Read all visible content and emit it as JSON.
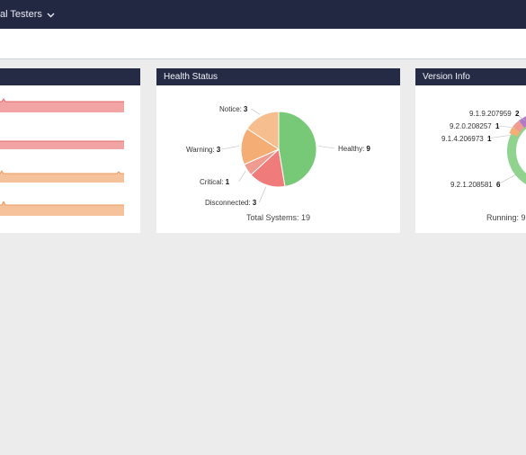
{
  "topbar": {
    "title": "al Testers"
  },
  "health": {
    "title": "Health Status",
    "total_label": "Total Systems: 19",
    "slices": [
      {
        "name": "Healthy",
        "value": 9,
        "color": "#77c977"
      },
      {
        "name": "Disconnected",
        "value": 3,
        "color": "#ef7b7b"
      },
      {
        "name": "Critical",
        "value": 1,
        "color": "#f09b8f"
      },
      {
        "name": "Warning",
        "value": 3,
        "color": "#f4ad74"
      },
      {
        "name": "Notice",
        "value": 3,
        "color": "#f6be8f"
      }
    ]
  },
  "version": {
    "title": "Version Info",
    "running_label": "Running: 9",
    "items": [
      {
        "name": "9.1.9.207959",
        "value": "2"
      },
      {
        "name": "9.2.0.208257",
        "value": "1"
      },
      {
        "name": "9.1.4.206973",
        "value": "1"
      },
      {
        "name": "9.2.1.208581",
        "value": "6"
      }
    ]
  },
  "chart_data": {
    "type": "pie",
    "title": "Health Status",
    "categories": [
      "Healthy",
      "Disconnected",
      "Critical",
      "Warning",
      "Notice"
    ],
    "values": [
      9,
      3,
      1,
      3,
      3
    ]
  },
  "colors": {
    "topbar": "#232842",
    "card_header": "#262b45",
    "red_bar": "#f2a3a3",
    "orange_bar": "#f6c29b"
  }
}
